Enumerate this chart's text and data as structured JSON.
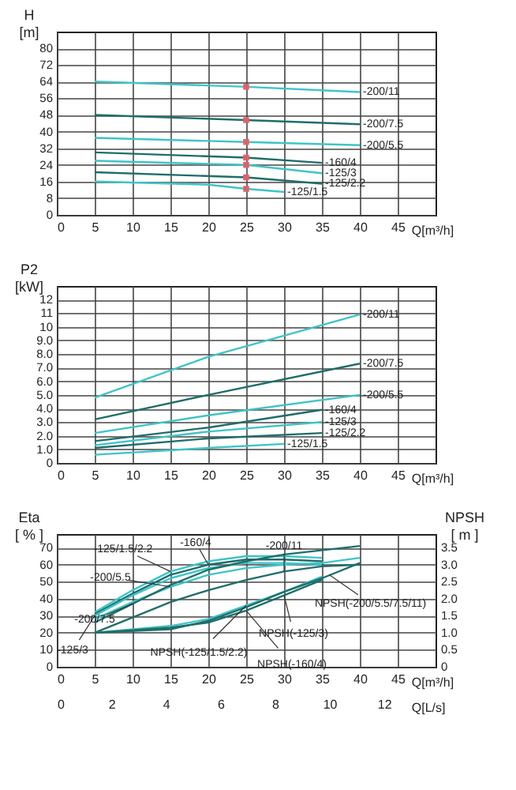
{
  "chart_data": [
    {
      "type": "line",
      "ylabel": "H [m]",
      "xlabel": "Q[m³/h]",
      "xlim": [
        0,
        50
      ],
      "xticks": [
        0,
        5,
        10,
        15,
        20,
        25,
        30,
        35,
        40,
        45
      ],
      "ylim": [
        0,
        88
      ],
      "yticks": [
        0,
        8,
        16,
        24,
        32,
        40,
        48,
        56,
        64,
        72,
        80
      ],
      "grid": true,
      "series": [
        {
          "name": "-200/11",
          "color": "#3ec4c8",
          "x": [
            5,
            25,
            40
          ],
          "values": [
            64,
            61.5,
            59
          ]
        },
        {
          "name": "-200/7.5",
          "color": "#1e6e6a",
          "x": [
            5,
            25,
            40
          ],
          "values": [
            48,
            45.5,
            43.5
          ]
        },
        {
          "name": "-200/5.5",
          "color": "#3ec4c8",
          "x": [
            5,
            25,
            40
          ],
          "values": [
            37,
            35,
            33.5
          ]
        },
        {
          "name": "-160/4",
          "color": "#1e6e6a",
          "x": [
            5,
            25,
            35
          ],
          "values": [
            30,
            27.5,
            25
          ]
        },
        {
          "name": "-125/3",
          "color": "#3ec4c8",
          "x": [
            5,
            25,
            35
          ],
          "values": [
            26,
            24,
            20
          ]
        },
        {
          "name": "-125/2.2",
          "color": "#1e6e6a",
          "x": [
            5,
            25,
            35
          ],
          "values": [
            20.5,
            18,
            15
          ]
        },
        {
          "name": "-125/1.5",
          "color": "#3ec4c8",
          "x": [
            5,
            20,
            25,
            30
          ],
          "values": [
            16,
            14.5,
            12.5,
            11
          ]
        },
        {
          "type": "scatter",
          "color": "#e0606a",
          "x": [
            25,
            25,
            25,
            25,
            25,
            25,
            25
          ],
          "values": [
            61.5,
            45.5,
            35,
            27.5,
            24,
            18,
            12.5
          ]
        }
      ]
    },
    {
      "type": "line",
      "ylabel": "P2 [kW]",
      "xlabel": "Q[m³/h]",
      "xlim": [
        0,
        50
      ],
      "xticks": [
        0,
        5,
        10,
        15,
        20,
        25,
        30,
        35,
        40,
        45
      ],
      "ylim": [
        0,
        13
      ],
      "yticks": [
        0,
        {
          "value": 1,
          "label": "1.0"
        },
        {
          "value": 2,
          "label": "2.0"
        },
        {
          "value": 3,
          "label": "3.0"
        },
        {
          "value": 4,
          "label": "4.0"
        },
        {
          "value": 5,
          "label": "5.0"
        },
        {
          "value": 6,
          "label": "6.0"
        },
        {
          "value": 7,
          "label": "7.0"
        },
        {
          "value": 8,
          "label": "8.0"
        },
        {
          "value": 9,
          "label": "9.0"
        },
        10,
        11,
        12
      ],
      "grid": true,
      "series": [
        {
          "name": "-200/11",
          "color": "#3ec4c8",
          "x": [
            5,
            20,
            40
          ],
          "values": [
            4.8,
            7.8,
            10.9
          ]
        },
        {
          "name": "-200/7.5",
          "color": "#1e6e6a",
          "x": [
            5,
            20,
            40
          ],
          "values": [
            3.2,
            5.0,
            7.3
          ]
        },
        {
          "name": "-200/5.5",
          "color": "#3ec4c8",
          "x": [
            5,
            20,
            40
          ],
          "values": [
            2.2,
            3.5,
            5.0
          ]
        },
        {
          "name": "-160/4",
          "color": "#1e6e6a",
          "x": [
            5,
            20,
            35
          ],
          "values": [
            1.6,
            2.6,
            3.9
          ]
        },
        {
          "name": "-125/3",
          "color": "#3ec4c8",
          "x": [
            5,
            20,
            35
          ],
          "values": [
            1.3,
            2.3,
            3.0
          ]
        },
        {
          "name": "-125/2.2",
          "color": "#1e6e6a",
          "x": [
            5,
            20,
            35
          ],
          "values": [
            1.1,
            1.8,
            2.2
          ]
        },
        {
          "name": "-125/1.5",
          "color": "#3ec4c8",
          "x": [
            5,
            20,
            30
          ],
          "values": [
            0.6,
            1.1,
            1.4
          ]
        }
      ]
    },
    {
      "type": "line",
      "ylabel": "Eta [ % ]",
      "y2label": "NPSH [ m ]",
      "xlabel": "Q[m³/h]",
      "x2label": "Q[L/s]",
      "xlim": [
        0,
        50
      ],
      "xticks": [
        0,
        5,
        10,
        15,
        20,
        25,
        30,
        35,
        40,
        45
      ],
      "x2lim": [
        0,
        13.89
      ],
      "x2ticks": [
        0,
        2,
        4,
        6,
        8,
        10,
        12
      ],
      "ylim": [
        0,
        78
      ],
      "yticks": [
        0,
        10,
        20,
        30,
        40,
        50,
        60,
        70
      ],
      "y2lim": [
        0,
        3.9
      ],
      "y2ticks": [
        0,
        0.5,
        {
          "value": 1,
          "label": "1.0"
        },
        1.5,
        {
          "value": 2,
          "label": "2.0"
        },
        2.5,
        {
          "value": 3,
          "label": "3.0"
        },
        3.5
      ],
      "grid": true,
      "series": [
        {
          "color": "#3ec4c8",
          "x": [
            5,
            10,
            15,
            20,
            25,
            30,
            35
          ],
          "values": [
            32,
            45,
            56,
            62,
            65,
            65,
            64
          ]
        },
        {
          "color": "#1e6e6a",
          "x": [
            5,
            10,
            15,
            20,
            25,
            30,
            35
          ],
          "values": [
            31,
            43,
            54,
            60,
            63,
            63,
            62
          ]
        },
        {
          "color": "#3ec4c8",
          "x": [
            5,
            10,
            15,
            20,
            25,
            30,
            35
          ],
          "values": [
            30,
            42,
            52,
            58,
            61,
            61,
            60
          ]
        },
        {
          "color": "#3ec4c8",
          "x": [
            5,
            10,
            15,
            20,
            25,
            30,
            35,
            40
          ],
          "values": [
            28,
            38,
            47,
            54,
            58,
            60,
            61,
            64
          ]
        },
        {
          "color": "#1e6e6a",
          "x": [
            5,
            10,
            15,
            20,
            25,
            30,
            40
          ],
          "values": [
            26,
            37,
            48,
            57,
            62,
            66,
            71
          ]
        },
        {
          "color": "#1e6e6a",
          "x": [
            5,
            10,
            15,
            20,
            25,
            30,
            35,
            40
          ],
          "values": [
            20,
            29,
            38,
            45,
            51,
            56,
            59,
            60
          ]
        },
        {
          "color": "#3ec4c8",
          "axis": "y2",
          "x": [
            5,
            15,
            20,
            25,
            30,
            35
          ],
          "values": [
            1.0,
            1.2,
            1.4,
            1.8,
            2.2,
            2.65
          ]
        },
        {
          "color": "#1e6e6a",
          "axis": "y2",
          "x": [
            5,
            15,
            20,
            25,
            30,
            35
          ],
          "values": [
            1.0,
            1.15,
            1.3,
            1.65,
            2.1,
            2.55
          ]
        },
        {
          "color": "#1e6e6a",
          "axis": "y2",
          "x": [
            5,
            15,
            20,
            25,
            30,
            35,
            40
          ],
          "values": [
            1.0,
            1.1,
            1.35,
            1.75,
            2.2,
            2.6,
            3.05
          ]
        }
      ],
      "annotations": [
        {
          "text": "-125/3",
          "x": 5,
          "y": 30
        },
        {
          "text": "-200/7.5",
          "x": 10,
          "y": 37
        },
        {
          "text": "-200/5.5",
          "x": 15,
          "y": 47
        },
        {
          "text": "-125/1.5/2.2",
          "x": 15,
          "y": 56
        },
        {
          "text": "-160/4",
          "x": 20,
          "y": 60
        },
        {
          "text": "-200/11",
          "x": 30,
          "y": 56
        },
        {
          "text": "NPSH(-125/1.5/2.2)",
          "x": 25,
          "y": 36
        },
        {
          "text": "NPSH(-125/3)",
          "x": 30,
          "y": 42
        },
        {
          "text": "NPSH(-160/4)",
          "x": 25,
          "y": 33
        },
        {
          "text": "NPSH(-200/5.5/7.5/11)",
          "x": 36,
          "y": 54
        }
      ]
    }
  ]
}
